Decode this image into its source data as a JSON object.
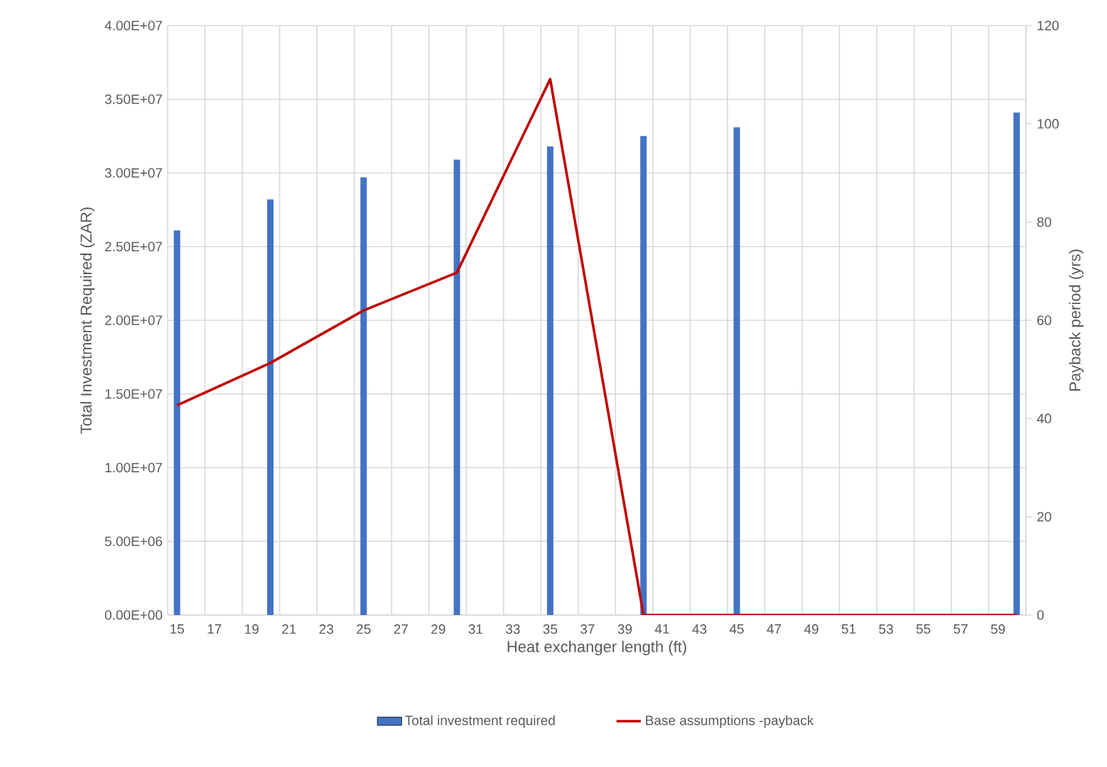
{
  "chart_data": {
    "type": "bar",
    "xlabel": "Heat exchanger length (ft)",
    "ylabel": "Total Investment Required (ZAR)",
    "y2label": "Payback period (yrs)",
    "categories": [
      "15",
      null,
      "17",
      null,
      "19",
      null,
      "21",
      null,
      "23",
      null,
      "25",
      null,
      "27",
      null,
      "29",
      null,
      "31",
      null,
      "33",
      null,
      "35",
      null,
      "37",
      null,
      "39",
      null,
      "41",
      null,
      "43",
      null,
      "45",
      null,
      "47",
      null,
      "49",
      null,
      "51",
      null,
      "53",
      null,
      "55",
      null,
      "57",
      null,
      "59",
      null
    ],
    "series": [
      {
        "name": "Total investment required",
        "color": "#4472c4",
        "values": [
          26100000.0,
          null,
          null,
          null,
          null,
          28200000.0,
          null,
          null,
          null,
          null,
          29700000.0,
          null,
          null,
          null,
          null,
          30900000.0,
          null,
          null,
          null,
          null,
          31800000.0,
          null,
          null,
          null,
          null,
          32500000.0,
          null,
          null,
          null,
          null,
          33100000.0,
          null,
          null,
          null,
          null,
          null,
          null,
          null,
          null,
          null,
          null,
          null,
          null,
          null,
          null,
          34100000.0
        ]
      },
      {
        "name": "Base assumptions -payback",
        "type": "line",
        "axis": "y2",
        "color": "#c00000",
        "values": [
          42.7,
          null,
          null,
          null,
          null,
          51.3,
          null,
          null,
          null,
          null,
          62,
          null,
          null,
          null,
          null,
          69.7,
          null,
          null,
          null,
          null,
          109.1,
          null,
          null,
          null,
          null,
          0,
          null,
          null,
          null,
          null,
          0,
          null,
          null,
          null,
          null,
          null,
          null,
          null,
          null,
          null,
          null,
          null,
          null,
          null,
          null,
          0
        ]
      }
    ],
    "ylim": [
      0,
      40000000
    ],
    "yticks": [
      {
        "value": 0,
        "label": "0.00E+00"
      },
      {
        "value": 5000000,
        "label": "5.00E+06"
      },
      {
        "value": 10000000,
        "label": "1.00E+07"
      },
      {
        "value": 15000000,
        "label": "1.50E+07"
      },
      {
        "value": 20000000,
        "label": "2.00E+07"
      },
      {
        "value": 25000000,
        "label": "2.50E+07"
      },
      {
        "value": 30000000,
        "label": "3.00E+07"
      },
      {
        "value": 35000000,
        "label": "3.50E+07"
      },
      {
        "value": 40000000,
        "label": "4.00E+07"
      }
    ],
    "y2lim": [
      0,
      120
    ],
    "y2ticks": [
      0,
      20,
      40,
      60,
      80,
      100,
      120
    ],
    "grid": true,
    "legend": "bottom"
  }
}
